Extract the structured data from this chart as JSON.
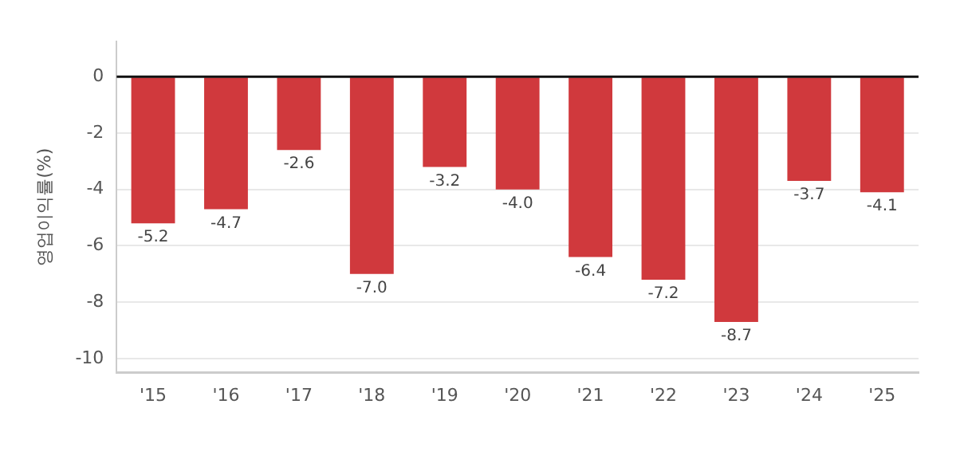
{
  "chart_data": {
    "type": "bar",
    "ylabel": "영업이익률(%)",
    "categories": [
      "'15",
      "'16",
      "'17",
      "'18",
      "'19",
      "'20",
      "'21",
      "'22",
      "'23",
      "'24",
      "'25"
    ],
    "values": [
      -5.2,
      -4.7,
      -2.6,
      -7.0,
      -3.2,
      -4.0,
      -6.4,
      -7.2,
      -8.7,
      -3.7,
      -4.1
    ],
    "value_labels": [
      "-5.2",
      "-4.7",
      "-2.6",
      "-7.0",
      "-3.2",
      "-4.0",
      "-6.4",
      "-7.2",
      "-8.7",
      "-3.7",
      "-4.1"
    ],
    "color": "#d0393d",
    "ylim": [
      -10.5,
      1.25
    ],
    "yticks": [
      0,
      -2,
      -4,
      -6,
      -8,
      -10
    ],
    "grid": "y",
    "legend": false,
    "ref_lines": [
      {
        "axis": "y",
        "value": 0,
        "color": "#111111"
      }
    ]
  }
}
